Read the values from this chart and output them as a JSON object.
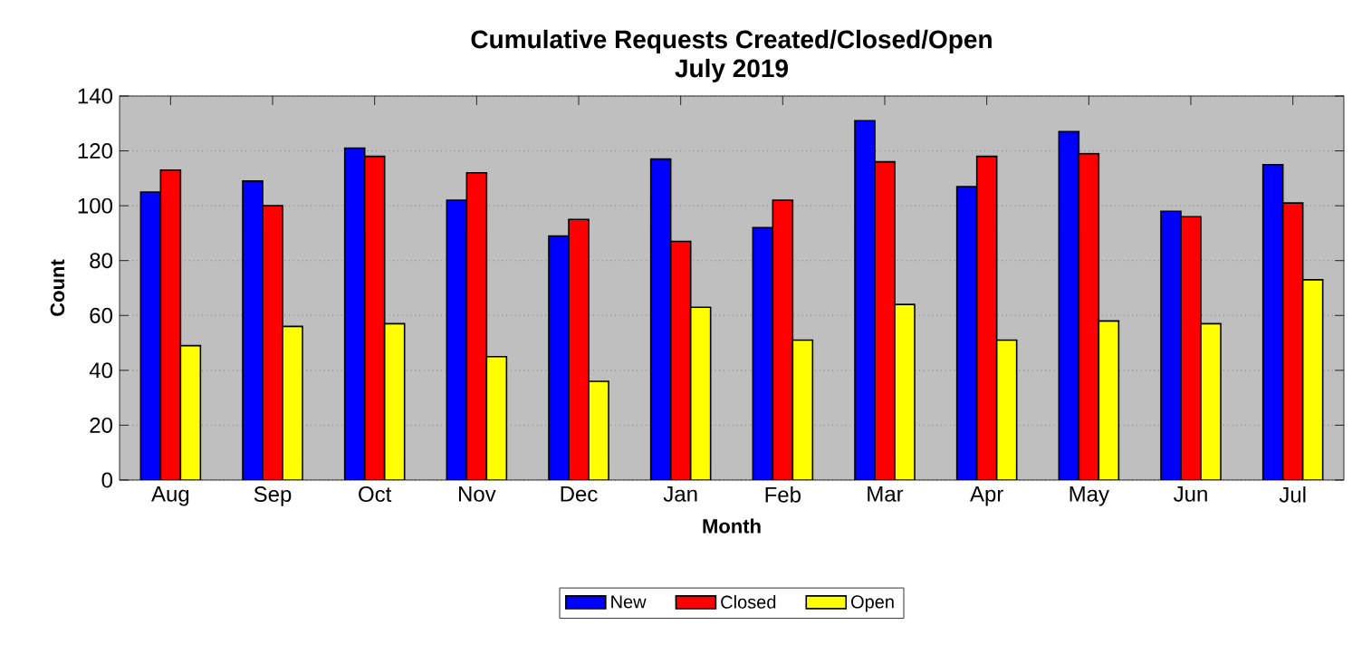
{
  "chart_data": {
    "type": "bar",
    "title": "Cumulative Requests Created/Closed/Open\nJuly 2019",
    "xlabel": "Month",
    "ylabel": "Count",
    "categories": [
      "Aug",
      "Sep",
      "Oct",
      "Nov",
      "Dec",
      "Jan",
      "Feb",
      "Mar",
      "Apr",
      "May",
      "Jun",
      "Jul"
    ],
    "series": [
      {
        "name": "New",
        "color": "#0000ff",
        "values": [
          105,
          109,
          121,
          102,
          89,
          117,
          92,
          131,
          107,
          127,
          98,
          115
        ]
      },
      {
        "name": "Closed",
        "color": "#ff0000",
        "values": [
          113,
          100,
          118,
          112,
          95,
          87,
          102,
          116,
          118,
          119,
          96,
          101
        ]
      },
      {
        "name": "Open",
        "color": "#ffff00",
        "values": [
          49,
          56,
          57,
          45,
          36,
          63,
          51,
          64,
          51,
          58,
          57,
          73
        ]
      }
    ],
    "ylim": [
      0,
      140
    ],
    "yticks": [
      0,
      20,
      40,
      60,
      80,
      100,
      120,
      140
    ],
    "grid": "y",
    "legend": "bottom"
  }
}
